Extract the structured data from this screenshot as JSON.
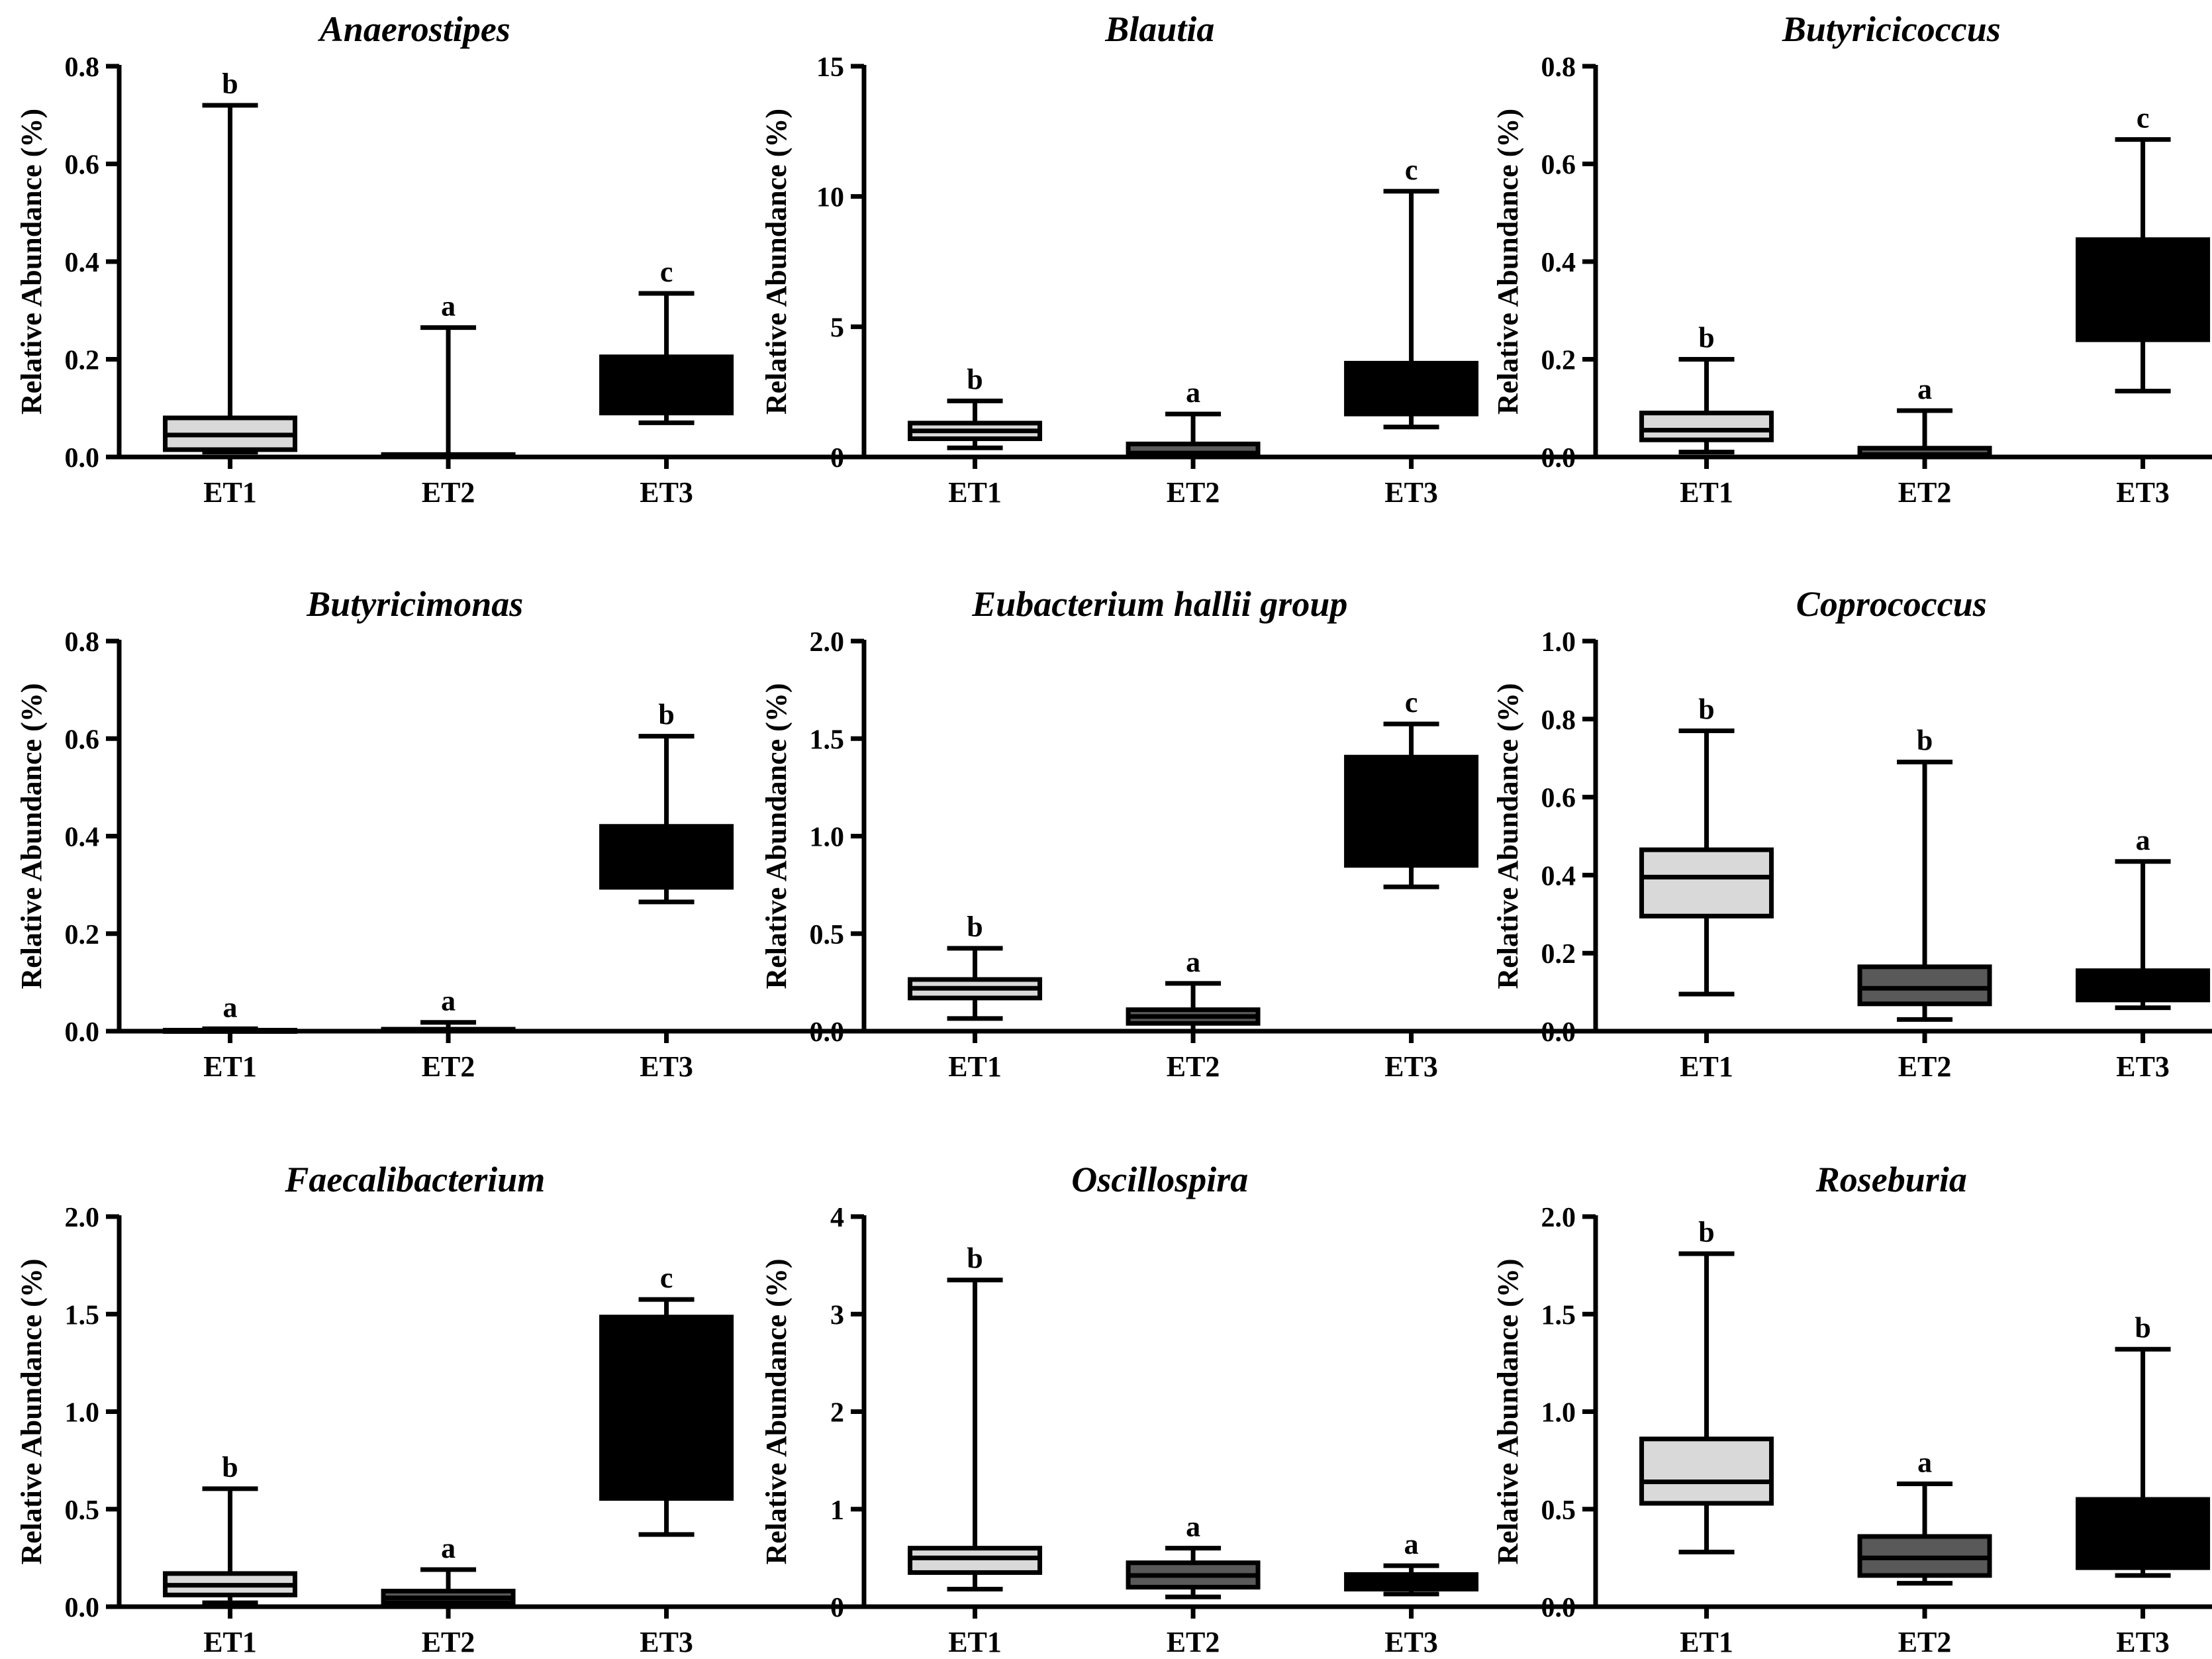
{
  "colors": {
    "ET1": "#d9d9d9",
    "ET2": "#595959",
    "ET3": "#000000",
    "ink": "#000000"
  },
  "chart_data": [
    {
      "type": "box",
      "title": "Anaerostipes",
      "ylabel": "Relative Abundance (%)",
      "ylim": [
        0,
        0.8
      ],
      "yticks": [
        "0.0",
        "0.2",
        "0.4",
        "0.6",
        "0.8"
      ],
      "categories": [
        "ET1",
        "ET2",
        "ET3"
      ],
      "boxes": [
        {
          "group": "ET1",
          "min": 0.01,
          "q1": 0.015,
          "median": 0.045,
          "q3": 0.08,
          "max": 0.72,
          "letter": "b"
        },
        {
          "group": "ET2",
          "min": 0.0,
          "q1": 0.0,
          "median": 0.002,
          "q3": 0.005,
          "max": 0.265,
          "letter": "a"
        },
        {
          "group": "ET3",
          "min": 0.07,
          "q1": 0.09,
          "median": 0.1,
          "q3": 0.205,
          "max": 0.335,
          "letter": "c"
        }
      ]
    },
    {
      "type": "box",
      "title": "Blautia",
      "ylabel": "Relative Abundance (%)",
      "ylim": [
        0,
        15
      ],
      "yticks": [
        "0",
        "5",
        "10",
        "15"
      ],
      "categories": [
        "ET1",
        "ET2",
        "ET3"
      ],
      "boxes": [
        {
          "group": "ET1",
          "min": 0.35,
          "q1": 0.7,
          "median": 1.0,
          "q3": 1.3,
          "max": 2.15,
          "letter": "b"
        },
        {
          "group": "ET2",
          "min": 0.0,
          "q1": 0.05,
          "median": 0.15,
          "q3": 0.5,
          "max": 1.65,
          "letter": "a"
        },
        {
          "group": "ET3",
          "min": 1.15,
          "q1": 1.65,
          "median": 2.3,
          "q3": 3.6,
          "max": 10.2,
          "letter": "c"
        }
      ]
    },
    {
      "type": "box",
      "title": "Butyricicoccus",
      "ylabel": "Relative Abundance (%)",
      "ylim": [
        0,
        0.8
      ],
      "yticks": [
        "0.0",
        "0.2",
        "0.4",
        "0.6",
        "0.8"
      ],
      "categories": [
        "ET1",
        "ET2",
        "ET3"
      ],
      "boxes": [
        {
          "group": "ET1",
          "min": 0.01,
          "q1": 0.035,
          "median": 0.055,
          "q3": 0.09,
          "max": 0.2,
          "letter": "b"
        },
        {
          "group": "ET2",
          "min": 0.0,
          "q1": 0.0,
          "median": 0.005,
          "q3": 0.018,
          "max": 0.095,
          "letter": "a"
        },
        {
          "group": "ET3",
          "min": 0.135,
          "q1": 0.24,
          "median": 0.3,
          "q3": 0.445,
          "max": 0.65,
          "letter": "c"
        }
      ]
    },
    {
      "type": "box",
      "title": "Butyricimonas",
      "ylabel": "Relative Abundance (%)",
      "ylim": [
        0,
        0.8
      ],
      "yticks": [
        "0.0",
        "0.2",
        "0.4",
        "0.6",
        "0.8"
      ],
      "categories": [
        "ET1",
        "ET2",
        "ET3"
      ],
      "boxes": [
        {
          "group": "ET1",
          "min": 0.0,
          "q1": 0.0,
          "median": 0.0,
          "q3": 0.002,
          "max": 0.005,
          "letter": "a"
        },
        {
          "group": "ET2",
          "min": 0.0,
          "q1": 0.0,
          "median": 0.0,
          "q3": 0.004,
          "max": 0.018,
          "letter": "a"
        },
        {
          "group": "ET3",
          "min": 0.265,
          "q1": 0.295,
          "median": 0.31,
          "q3": 0.42,
          "max": 0.605,
          "letter": "b"
        }
      ]
    },
    {
      "type": "box",
      "title": "Eubacterium hallii group",
      "ylabel": "Relative Abundance (%)",
      "ylim": [
        0,
        2.0
      ],
      "yticks": [
        "0.0",
        "0.5",
        "1.0",
        "1.5",
        "2.0"
      ],
      "categories": [
        "ET1",
        "ET2",
        "ET3"
      ],
      "boxes": [
        {
          "group": "ET1",
          "min": 0.065,
          "q1": 0.17,
          "median": 0.22,
          "q3": 0.265,
          "max": 0.425,
          "letter": "b"
        },
        {
          "group": "ET2",
          "min": 0.0,
          "q1": 0.04,
          "median": 0.075,
          "q3": 0.11,
          "max": 0.245,
          "letter": "a"
        },
        {
          "group": "ET3",
          "min": 0.74,
          "q1": 0.85,
          "median": 1.0,
          "q3": 1.405,
          "max": 1.575,
          "letter": "c"
        }
      ]
    },
    {
      "type": "box",
      "title": "Coprococcus",
      "ylabel": "Relative Abundance (%)",
      "ylim": [
        0,
        1.0
      ],
      "yticks": [
        "0.0",
        "0.2",
        "0.4",
        "0.6",
        "0.8",
        "1.0"
      ],
      "categories": [
        "ET1",
        "ET2",
        "ET3"
      ],
      "boxes": [
        {
          "group": "ET1",
          "min": 0.095,
          "q1": 0.295,
          "median": 0.395,
          "q3": 0.465,
          "max": 0.77,
          "letter": "b"
        },
        {
          "group": "ET2",
          "min": 0.03,
          "q1": 0.07,
          "median": 0.11,
          "q3": 0.165,
          "max": 0.69,
          "letter": "b"
        },
        {
          "group": "ET3",
          "min": 0.06,
          "q1": 0.08,
          "median": 0.11,
          "q3": 0.155,
          "max": 0.435,
          "letter": "a"
        }
      ]
    },
    {
      "type": "box",
      "title": "Faecalibacterium",
      "ylabel": "Relative Abundance (%)",
      "ylim": [
        0,
        2.0
      ],
      "yticks": [
        "0.0",
        "0.5",
        "1.0",
        "1.5",
        "2.0"
      ],
      "categories": [
        "ET1",
        "ET2",
        "ET3"
      ],
      "boxes": [
        {
          "group": "ET1",
          "min": 0.02,
          "q1": 0.06,
          "median": 0.11,
          "q3": 0.17,
          "max": 0.605,
          "letter": "b"
        },
        {
          "group": "ET2",
          "min": 0.0,
          "q1": 0.02,
          "median": 0.045,
          "q3": 0.08,
          "max": 0.19,
          "letter": "a"
        },
        {
          "group": "ET3",
          "min": 0.37,
          "q1": 0.555,
          "median": 0.9,
          "q3": 1.485,
          "max": 1.575,
          "letter": "c"
        }
      ]
    },
    {
      "type": "box",
      "title": "Oscillospira",
      "ylabel": "Relative Abundance (%)",
      "ylim": [
        0,
        4
      ],
      "yticks": [
        "0",
        "1",
        "2",
        "3",
        "4"
      ],
      "categories": [
        "ET1",
        "ET2",
        "ET3"
      ],
      "boxes": [
        {
          "group": "ET1",
          "min": 0.18,
          "q1": 0.35,
          "median": 0.5,
          "q3": 0.6,
          "max": 3.35,
          "letter": "b"
        },
        {
          "group": "ET2",
          "min": 0.1,
          "q1": 0.2,
          "median": 0.32,
          "q3": 0.45,
          "max": 0.6,
          "letter": "a"
        },
        {
          "group": "ET3",
          "min": 0.13,
          "q1": 0.18,
          "median": 0.24,
          "q3": 0.33,
          "max": 0.42,
          "letter": "a"
        }
      ]
    },
    {
      "type": "box",
      "title": "Roseburia",
      "ylabel": "Relative Abundance (%)",
      "ylim": [
        0,
        2.0
      ],
      "yticks": [
        "0.0",
        "0.5",
        "1.0",
        "1.5",
        "2.0"
      ],
      "categories": [
        "ET1",
        "ET2",
        "ET3"
      ],
      "boxes": [
        {
          "group": "ET1",
          "min": 0.28,
          "q1": 0.53,
          "median": 0.64,
          "q3": 0.86,
          "max": 1.81,
          "letter": "b"
        },
        {
          "group": "ET2",
          "min": 0.12,
          "q1": 0.16,
          "median": 0.25,
          "q3": 0.36,
          "max": 0.63,
          "letter": "a"
        },
        {
          "group": "ET3",
          "min": 0.16,
          "q1": 0.2,
          "median": 0.32,
          "q3": 0.55,
          "max": 1.32,
          "letter": "b"
        }
      ]
    }
  ]
}
